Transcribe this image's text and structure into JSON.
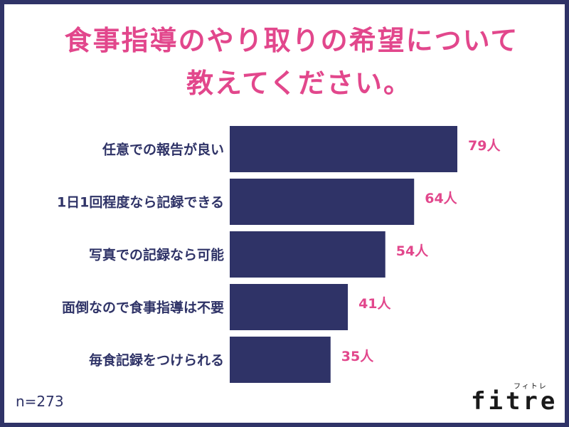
{
  "title_line1": "食事指導のやり取りの希望について",
  "title_line2": "教えてください。",
  "sample_size": "n=273",
  "brand": {
    "name": "fitre",
    "kana": "フィトレ"
  },
  "colors": {
    "bar": "#2f3367",
    "accent": "#e2478c",
    "text": "#2f3367",
    "frame": "#2f3367"
  },
  "chart_data": {
    "type": "bar",
    "orientation": "horizontal",
    "categories": [
      "任意での報告が良い",
      "1日1回程度なら記録できる",
      "写真での記録なら可能",
      "面倒なので食事指導は不要",
      "毎食記録をつけられる"
    ],
    "values": [
      79,
      64,
      54,
      41,
      35
    ],
    "value_labels": [
      "79人",
      "64人",
      "54人",
      "41人",
      "35人"
    ],
    "xlim": [
      0,
      79
    ],
    "grid": false
  }
}
